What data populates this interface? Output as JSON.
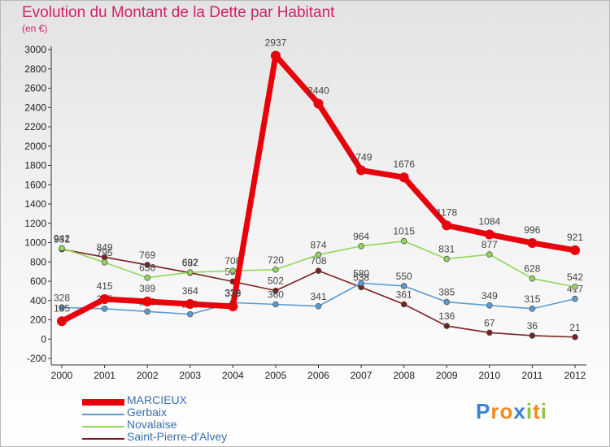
{
  "chart_data": {
    "type": "line",
    "title": "Evolution du Montant de la Dette par Habitant",
    "ylabel": "(en €)",
    "xlabel": "",
    "x": [
      "2000",
      "2001",
      "2002",
      "2003",
      "2004",
      "2005",
      "2006",
      "2007",
      "2008",
      "2009",
      "2010",
      "2011",
      "2012"
    ],
    "ylim": [
      -200,
      3000
    ],
    "yticks": [
      -200,
      0,
      200,
      400,
      600,
      800,
      1000,
      1200,
      1400,
      1600,
      1800,
      2000,
      2200,
      2400,
      2600,
      2800,
      3000
    ],
    "grid": false,
    "legend_position": "bottom-left",
    "series": [
      {
        "name": "MARCIEUX",
        "color": "#e8000b",
        "values": [
          185,
          415,
          389,
          364,
          339,
          2937,
          2440,
          1749,
          1676,
          1178,
          1084,
          996,
          921
        ]
      },
      {
        "name": "Gerbaix",
        "color": "#5b9bd2",
        "values": [
          328,
          315,
          286,
          258,
          378,
          360,
          341,
          580,
          550,
          385,
          349,
          315,
          417
        ]
      },
      {
        "name": "Novalaise",
        "color": "#92d65a",
        "values": [
          942,
          795,
          636,
          692,
          708,
          720,
          874,
          964,
          1015,
          831,
          877,
          628,
          542
        ]
      },
      {
        "name": "Saint-Pierre-d'Alvey",
        "color": "#7b1f1f",
        "values": [
          931,
          849,
          769,
          687,
          597,
          502,
          708,
          538,
          361,
          136,
          67,
          36,
          21
        ]
      }
    ]
  },
  "logo": {
    "text": "Proxiti",
    "letters": [
      "P",
      "r",
      "o",
      "x",
      "i",
      "t",
      "i"
    ]
  }
}
